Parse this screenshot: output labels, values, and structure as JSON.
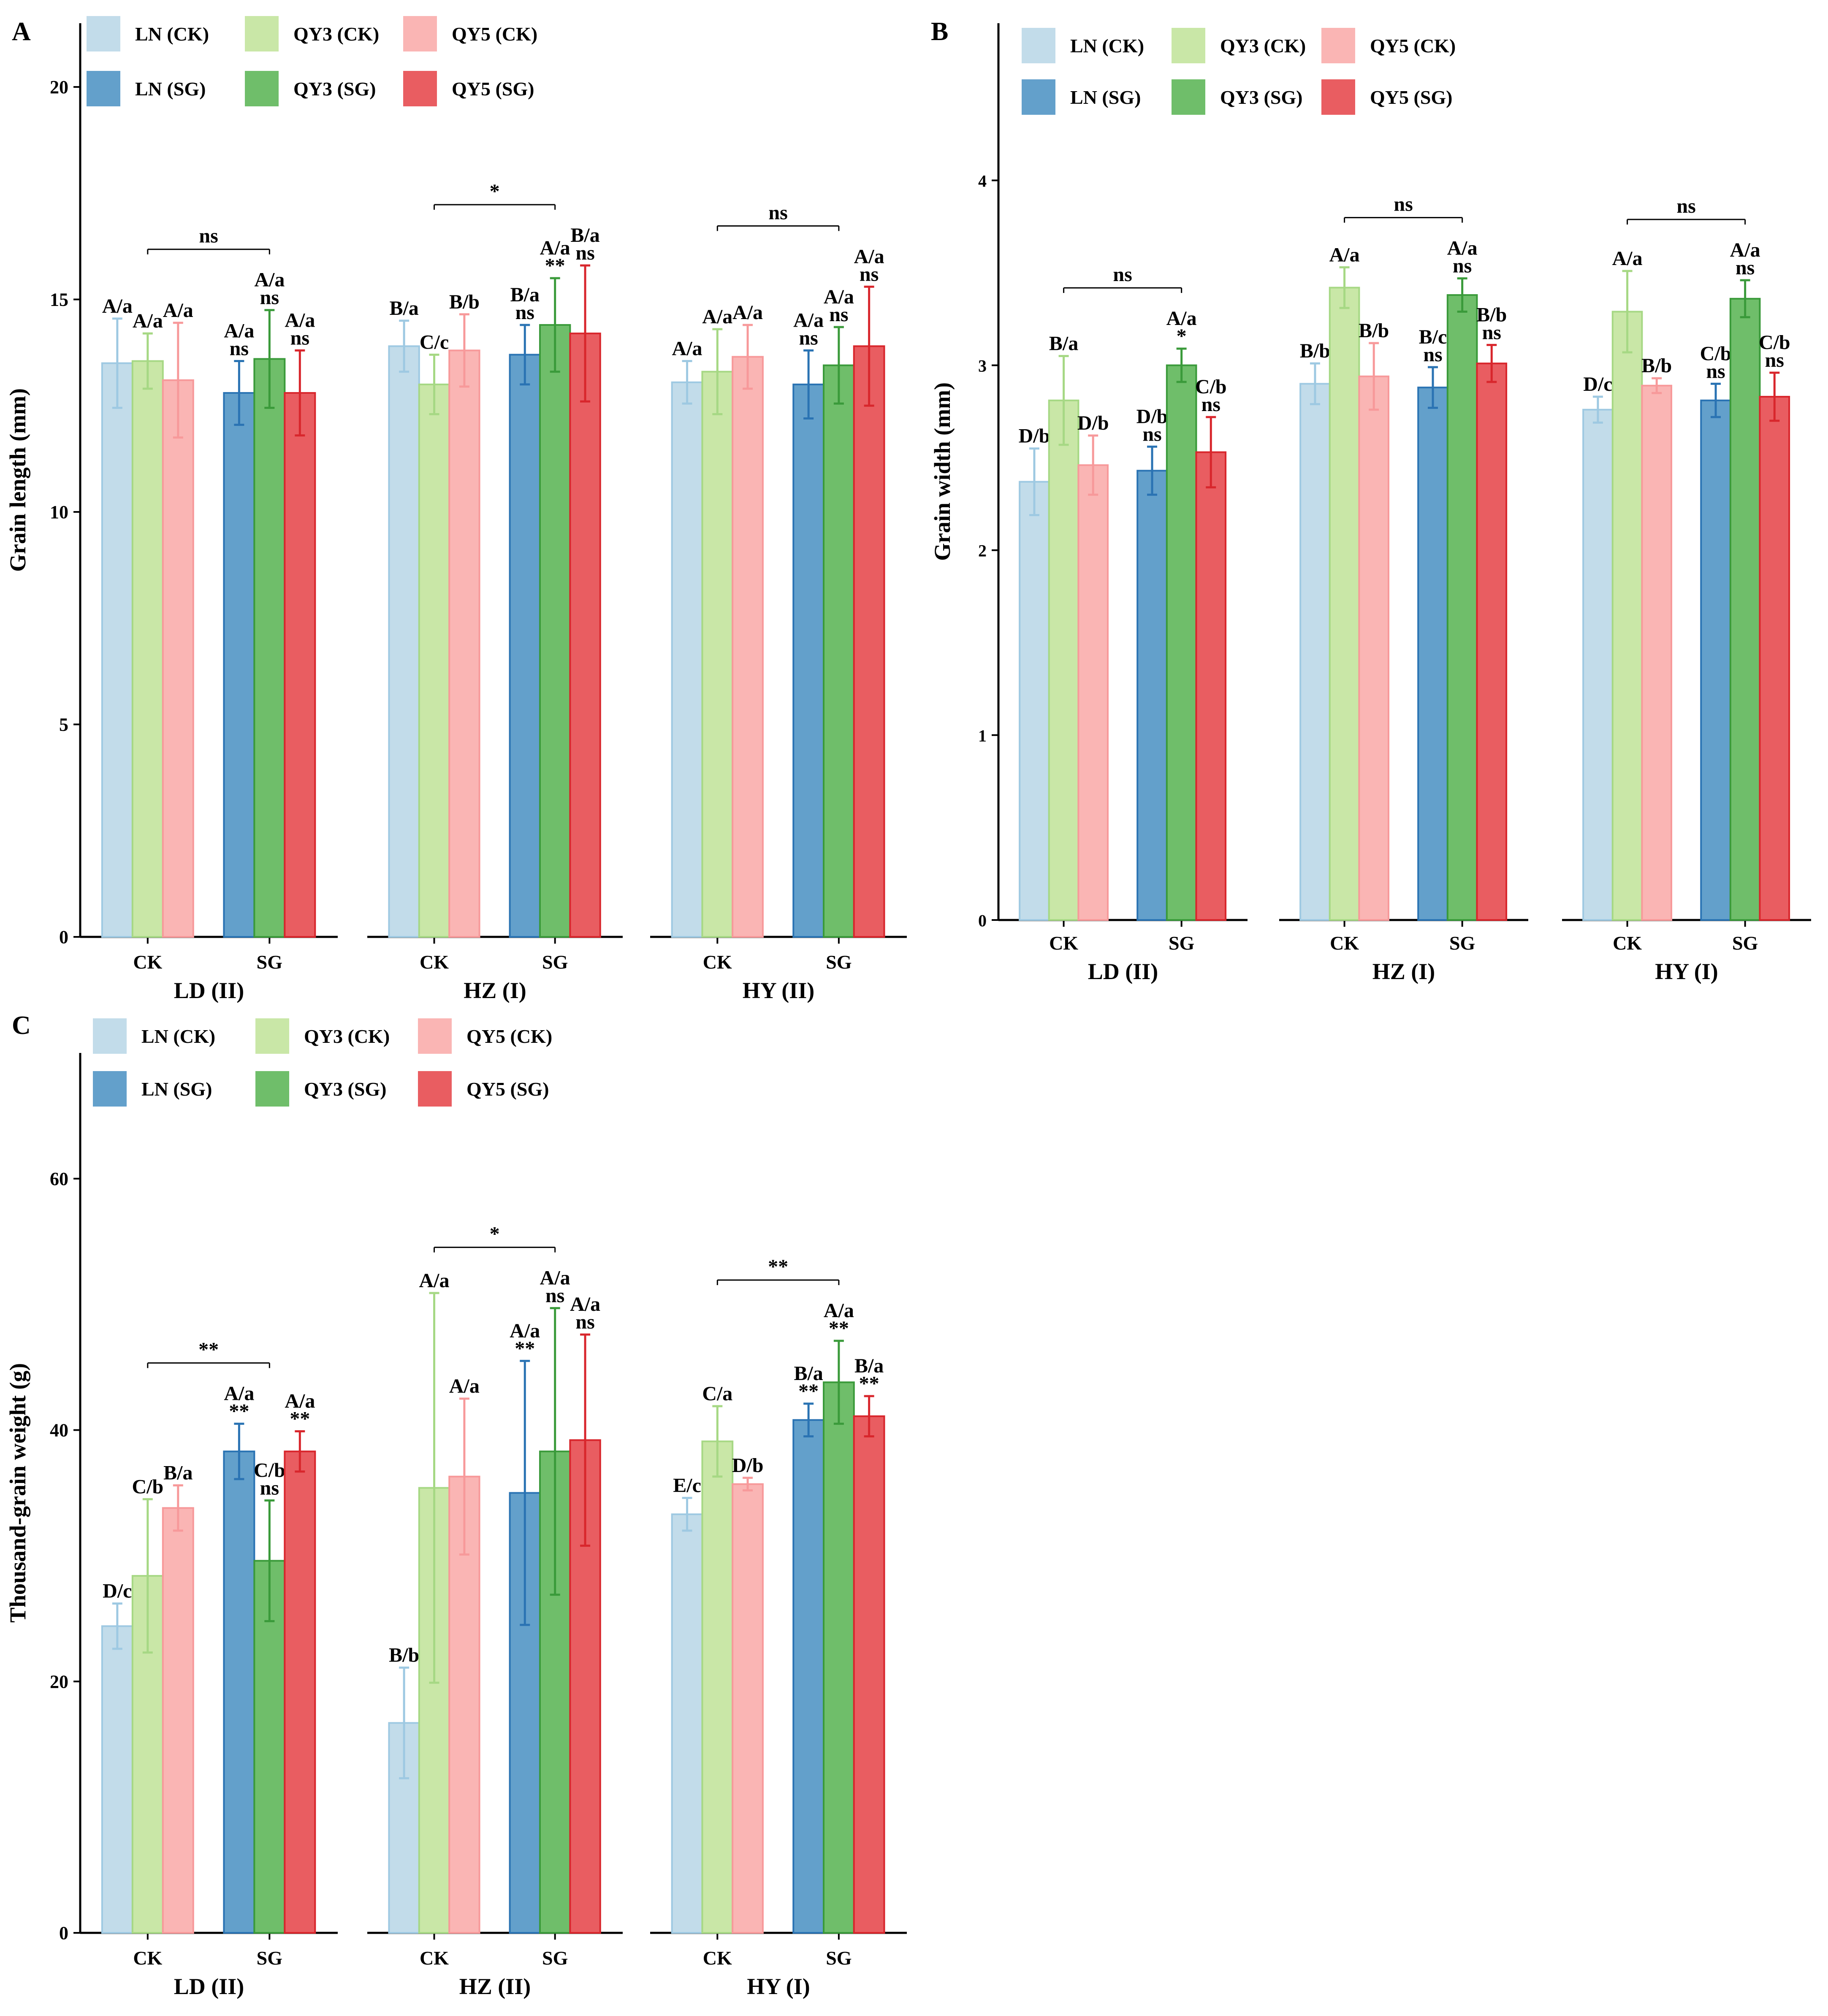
{
  "legend_labels": [
    "LN (CK)",
    "QY3 (CK)",
    "QY5 (CK)",
    "LN (SG)",
    "QY3 (SG)",
    "QY5 (SG)"
  ],
  "colors": {
    "LN_CK": "#c2dcea",
    "QY3_CK": "#c9e7a7",
    "QY5_CK": "#fab5b4",
    "LN_SG": "#63a0cb",
    "QY3_SG": "#6fbe6a",
    "QY5_SG": "#e95d61",
    "LN_CK_err": "#9ec9e2",
    "QY3_CK_err": "#a6d884",
    "QY5_CK_err": "#f7999a",
    "LN_SG_err": "#2a73b3",
    "QY3_SG_err": "#3a9a3a",
    "QY5_SG_err": "#d8262c",
    "axis": "#000000"
  },
  "chart_data": [
    {
      "panel": "A",
      "type": "bar",
      "ylabel": "Grain length (mm)",
      "ylim": [
        0,
        21.5
      ],
      "yticks": [
        0,
        5,
        10,
        15,
        20
      ],
      "groups": [
        {
          "site": "LD (II)",
          "categories": [
            "CK",
            "SG"
          ],
          "bars": [
            {
              "series": "LN_CK",
              "value": 13.5,
              "err": 1.05,
              "labels": [
                "A/a"
              ]
            },
            {
              "series": "QY3_CK",
              "value": 13.55,
              "err": 0.65,
              "labels": [
                "A/a"
              ]
            },
            {
              "series": "QY5_CK",
              "value": 13.1,
              "err": 1.35,
              "labels": [
                "A/a"
              ]
            },
            {
              "series": "LN_SG",
              "value": 12.8,
              "err": 0.75,
              "labels": [
                "A/a",
                "ns"
              ]
            },
            {
              "series": "QY3_SG",
              "value": 13.6,
              "err": 1.15,
              "labels": [
                "A/a",
                "ns"
              ]
            },
            {
              "series": "QY5_SG",
              "value": 12.8,
              "err": 1.0,
              "labels": [
                "A/a",
                "ns"
              ]
            }
          ],
          "bracket": "ns"
        },
        {
          "site": "HZ (I)",
          "categories": [
            "CK",
            "SG"
          ],
          "bars": [
            {
              "series": "LN_CK",
              "value": 13.9,
              "err": 0.6,
              "labels": [
                "B/a"
              ]
            },
            {
              "series": "QY3_CK",
              "value": 13.0,
              "err": 0.7,
              "labels": [
                "C/c"
              ]
            },
            {
              "series": "QY5_CK",
              "value": 13.8,
              "err": 0.85,
              "labels": [
                "B/b"
              ]
            },
            {
              "series": "LN_SG",
              "value": 13.7,
              "err": 0.7,
              "labels": [
                "B/a",
                "ns"
              ]
            },
            {
              "series": "QY3_SG",
              "value": 14.4,
              "err": 1.1,
              "labels": [
                "A/a",
                "**"
              ]
            },
            {
              "series": "QY5_SG",
              "value": 14.2,
              "err": 1.6,
              "labels": [
                "B/a",
                "ns"
              ]
            }
          ],
          "bracket": "*"
        },
        {
          "site": "HY (II)",
          "categories": [
            "CK",
            "SG"
          ],
          "bars": [
            {
              "series": "LN_CK",
              "value": 13.05,
              "err": 0.5,
              "labels": [
                "A/a"
              ]
            },
            {
              "series": "QY3_CK",
              "value": 13.3,
              "err": 1.0,
              "labels": [
                "A/a"
              ]
            },
            {
              "series": "QY5_CK",
              "value": 13.65,
              "err": 0.75,
              "labels": [
                "A/a"
              ]
            },
            {
              "series": "LN_SG",
              "value": 13.0,
              "err": 0.8,
              "labels": [
                "A/a",
                "ns"
              ]
            },
            {
              "series": "QY3_SG",
              "value": 13.45,
              "err": 0.9,
              "labels": [
                "A/a",
                "ns"
              ]
            },
            {
              "series": "QY5_SG",
              "value": 13.9,
              "err": 1.4,
              "labels": [
                "A/a",
                "ns"
              ]
            }
          ],
          "bracket": "ns"
        }
      ]
    },
    {
      "panel": "B",
      "type": "bar",
      "ylabel": "Grain width (mm)",
      "ylim": [
        0,
        4.85
      ],
      "yticks": [
        0,
        1,
        2,
        3,
        4
      ],
      "groups": [
        {
          "site": "LD (II)",
          "categories": [
            "CK",
            "SG"
          ],
          "bars": [
            {
              "series": "LN_CK",
              "value": 2.37,
              "err": 0.18,
              "labels": [
                "D/b"
              ]
            },
            {
              "series": "QY3_CK",
              "value": 2.81,
              "err": 0.24,
              "labels": [
                "B/a"
              ]
            },
            {
              "series": "QY5_CK",
              "value": 2.46,
              "err": 0.16,
              "labels": [
                "D/b"
              ]
            },
            {
              "series": "LN_SG",
              "value": 2.43,
              "err": 0.13,
              "labels": [
                "D/b",
                "ns"
              ]
            },
            {
              "series": "QY3_SG",
              "value": 3.0,
              "err": 0.09,
              "labels": [
                "A/a",
                "*"
              ]
            },
            {
              "series": "QY5_SG",
              "value": 2.53,
              "err": 0.19,
              "labels": [
                "C/b",
                "ns"
              ]
            }
          ],
          "bracket": "ns"
        },
        {
          "site": "HZ (I)",
          "categories": [
            "CK",
            "SG"
          ],
          "bars": [
            {
              "series": "LN_CK",
              "value": 2.9,
              "err": 0.11,
              "labels": [
                "B/b"
              ]
            },
            {
              "series": "QY3_CK",
              "value": 3.42,
              "err": 0.11,
              "labels": [
                "A/a"
              ]
            },
            {
              "series": "QY5_CK",
              "value": 2.94,
              "err": 0.18,
              "labels": [
                "B/b"
              ]
            },
            {
              "series": "LN_SG",
              "value": 2.88,
              "err": 0.11,
              "labels": [
                "B/c",
                "ns"
              ]
            },
            {
              "series": "QY3_SG",
              "value": 3.38,
              "err": 0.09,
              "labels": [
                "A/a",
                "ns"
              ]
            },
            {
              "series": "QY5_SG",
              "value": 3.01,
              "err": 0.1,
              "labels": [
                "B/b",
                "ns"
              ]
            }
          ],
          "bracket": "ns"
        },
        {
          "site": "HY (I)",
          "categories": [
            "CK",
            "SG"
          ],
          "bars": [
            {
              "series": "LN_CK",
              "value": 2.76,
              "err": 0.07,
              "labels": [
                "D/c"
              ]
            },
            {
              "series": "QY3_CK",
              "value": 3.29,
              "err": 0.22,
              "labels": [
                "A/a"
              ]
            },
            {
              "series": "QY5_CK",
              "value": 2.89,
              "err": 0.04,
              "labels": [
                "B/b"
              ]
            },
            {
              "series": "LN_SG",
              "value": 2.81,
              "err": 0.09,
              "labels": [
                "C/b",
                "ns"
              ]
            },
            {
              "series": "QY3_SG",
              "value": 3.36,
              "err": 0.1,
              "labels": [
                "A/a",
                "ns"
              ]
            },
            {
              "series": "QY5_SG",
              "value": 2.83,
              "err": 0.13,
              "labels": [
                "C/b",
                "ns"
              ]
            }
          ],
          "bracket": "ns"
        }
      ]
    },
    {
      "panel": "C",
      "type": "bar",
      "ylabel": "Thousand-grain weight (g)",
      "ylim": [
        0,
        70
      ],
      "yticks": [
        0,
        20,
        40,
        60
      ],
      "groups": [
        {
          "site": "LD (II)",
          "categories": [
            "CK",
            "SG"
          ],
          "bars": [
            {
              "series": "LN_CK",
              "value": 24.4,
              "err": 1.8,
              "labels": [
                "D/c"
              ]
            },
            {
              "series": "QY3_CK",
              "value": 28.4,
              "err": 6.1,
              "labels": [
                "C/b"
              ]
            },
            {
              "series": "QY5_CK",
              "value": 33.8,
              "err": 1.8,
              "labels": [
                "B/a"
              ]
            },
            {
              "series": "LN_SG",
              "value": 38.3,
              "err": 2.2,
              "labels": [
                "A/a",
                "**"
              ]
            },
            {
              "series": "QY3_SG",
              "value": 29.6,
              "err": 4.8,
              "labels": [
                "C/b",
                "ns"
              ]
            },
            {
              "series": "QY5_SG",
              "value": 38.3,
              "err": 1.6,
              "labels": [
                "A/a",
                "**"
              ]
            }
          ],
          "bracket": "**"
        },
        {
          "site": "HZ (II)",
          "categories": [
            "CK",
            "SG"
          ],
          "bars": [
            {
              "series": "LN_CK",
              "value": 16.7,
              "err": 4.4,
              "labels": [
                "B/b"
              ]
            },
            {
              "series": "QY3_CK",
              "value": 35.4,
              "err": 15.5,
              "labels": [
                "A/a"
              ]
            },
            {
              "series": "QY5_CK",
              "value": 36.3,
              "err": 6.2,
              "labels": [
                "A/a"
              ]
            },
            {
              "series": "LN_SG",
              "value": 35.0,
              "err": 10.5,
              "labels": [
                "A/a",
                "**"
              ]
            },
            {
              "series": "QY3_SG",
              "value": 38.3,
              "err": 11.4,
              "labels": [
                "A/a",
                "ns"
              ]
            },
            {
              "series": "QY5_SG",
              "value": 39.2,
              "err": 8.4,
              "labels": [
                "A/a",
                "ns"
              ]
            }
          ],
          "bracket": "*"
        },
        {
          "site": "HY (I)",
          "categories": [
            "CK",
            "SG"
          ],
          "bars": [
            {
              "series": "LN_CK",
              "value": 33.3,
              "err": 1.3,
              "labels": [
                "E/c"
              ]
            },
            {
              "series": "QY3_CK",
              "value": 39.1,
              "err": 2.8,
              "labels": [
                "C/a"
              ]
            },
            {
              "series": "QY5_CK",
              "value": 35.7,
              "err": 0.5,
              "labels": [
                "D/b"
              ]
            },
            {
              "series": "LN_SG",
              "value": 40.8,
              "err": 1.3,
              "labels": [
                "B/a",
                "**"
              ]
            },
            {
              "series": "QY3_SG",
              "value": 43.8,
              "err": 3.3,
              "labels": [
                "A/a",
                "**"
              ]
            },
            {
              "series": "QY5_SG",
              "value": 41.1,
              "err": 1.6,
              "labels": [
                "B/a",
                "**"
              ]
            }
          ],
          "bracket": "**"
        }
      ]
    }
  ]
}
